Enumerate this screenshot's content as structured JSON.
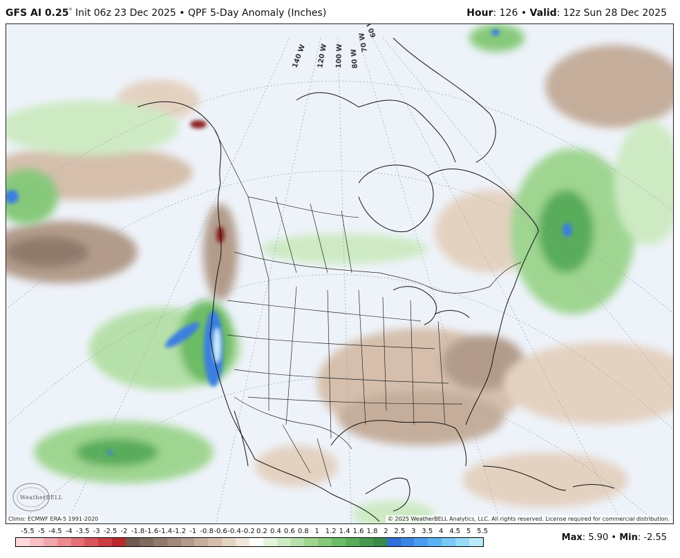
{
  "header": {
    "model": "GFS AI 0.25",
    "degree": "°",
    "init": "Init 06z 23 Dec 2025",
    "bullet": "•",
    "product": "QPF 5-Day Anomaly (Inches)",
    "hour_label": "Hour",
    "hour_value": ": 126",
    "valid_label": "Valid",
    "valid_value": ": 12z Sun 28 Dec 2025"
  },
  "map": {
    "longitude_labels": [
      "140 W",
      "120 W",
      "100 W",
      "80 W",
      "70 W",
      "60 W"
    ],
    "logo_text": "WeatherBELL",
    "climo_note": "Climo: ECMWF ERA-5 1991-2020",
    "copyright": "© 2025 WeatherBELL Analytics, LLC. All rights reserved. License required for commercial distribution.",
    "colors": {
      "background": "#eef3fa",
      "dry_light": "#e8d5c4",
      "dry_mid": "#c9a68c",
      "dry_dark": "#9b7866",
      "dry_extreme": "#8b2020",
      "wet_light": "#c8e6c0",
      "wet_mid": "#7bc47f",
      "wet_dark": "#3f9a55",
      "wet_blue": "#3a7fe0",
      "wet_extreme": "#c8f0ff"
    }
  },
  "legend": {
    "labels": [
      "-5.5",
      "-5",
      "-4.5",
      "-4",
      "-3.5",
      "-3",
      "-2.5",
      "-2",
      "-1.8",
      "-1.6",
      "-1.4",
      "-1.2",
      "-1",
      "-0.8",
      "-0.6",
      "-0.4",
      "-0.2",
      "0.2",
      "0.4",
      "0.6",
      "0.8",
      "1",
      "1.2",
      "1.4",
      "1.6",
      "1.8",
      "2",
      "2.5",
      "3",
      "3.5",
      "4",
      "4.5",
      "5",
      "5.5"
    ],
    "colors": [
      "#ffd9dc",
      "#f9c0c4",
      "#f2a5aa",
      "#eb8b90",
      "#e37177",
      "#d9565d",
      "#cc3d44",
      "#b82a2e",
      "#6e5a50",
      "#7e6a5e",
      "#8f7a6c",
      "#a08a7b",
      "#b29b8a",
      "#c4ad9b",
      "#d5bfac",
      "#e4d2c1",
      "#f1e6da",
      "#ffffff",
      "#e3f3dc",
      "#cdeac3",
      "#b6e0a9",
      "#9fd591",
      "#86c97a",
      "#6dbc66",
      "#58ac5a",
      "#459a50",
      "#3a8a4a",
      "#2f6fd6",
      "#3b86e4",
      "#4a9cee",
      "#5cb3f3",
      "#77c9f6",
      "#96dcf8",
      "#b8ecfa"
    ]
  },
  "stats": {
    "max_label": "Max",
    "max_value": ": 5.90",
    "min_label": "Min",
    "min_value": ": -2.55",
    "bullet": "•"
  }
}
